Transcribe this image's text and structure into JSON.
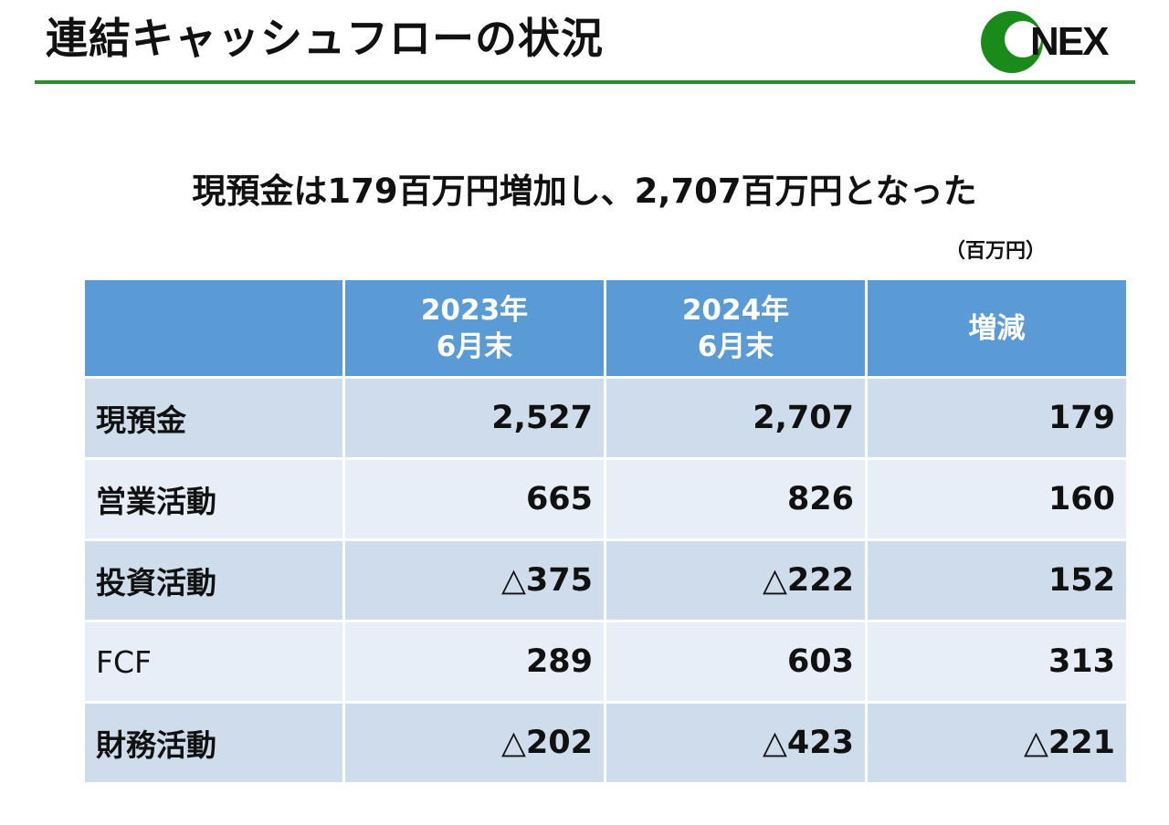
{
  "header": {
    "title": "連結キャッシュフローの状況",
    "logo_text": "ONEX",
    "accent_color": "#2e8b2e",
    "logo_color": "#1a8a1a"
  },
  "subtitle": "現預金は179百万円増加し、2,707百万円となった",
  "unit_note": "（百万円）",
  "table": {
    "header_color": "#5b9bd5",
    "columns": [
      {
        "line1": "",
        "line2": ""
      },
      {
        "line1": "2023年",
        "line2": "6月末"
      },
      {
        "line1": "2024年",
        "line2": "6月末"
      },
      {
        "line1": "増減",
        "line2": ""
      }
    ],
    "rows": [
      {
        "label": "現預金",
        "v2023": "2,527",
        "v2024": "2,707",
        "change": "179"
      },
      {
        "label": "営業活動",
        "v2023": "665",
        "v2024": "826",
        "change": "160"
      },
      {
        "label": "投資活動",
        "v2023": "△375",
        "v2024": "△222",
        "change": "152"
      },
      {
        "label": "FCF",
        "v2023": "289",
        "v2024": "603",
        "change": "313"
      },
      {
        "label": "財務活動",
        "v2023": "△202",
        "v2024": "△423",
        "change": "△221"
      }
    ]
  }
}
